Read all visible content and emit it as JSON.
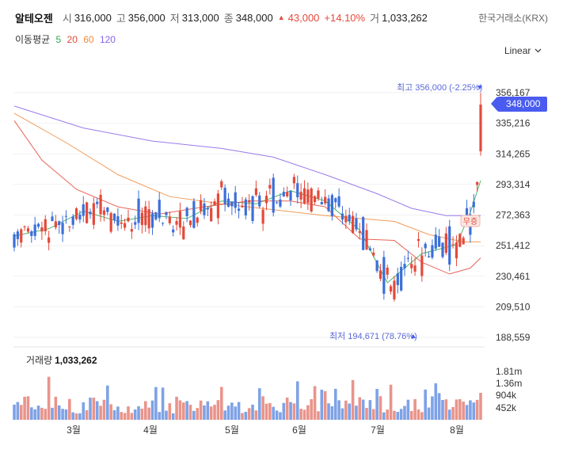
{
  "header": {
    "name": "알테오젠",
    "open_label": "시",
    "open": "316,000",
    "high_label": "고",
    "high": "356,000",
    "low_label": "저",
    "low": "313,000",
    "close_label": "종",
    "close": "348,000",
    "change_arrow": "▲",
    "change": "43,000",
    "change_pct": "+14.10%",
    "volume_label": "거",
    "volume": "1,033,262",
    "exchange": "한국거래소(KRX)"
  },
  "moving_average": {
    "label": "이동평균",
    "periods": [
      {
        "value": "5",
        "color": "#2fa84f"
      },
      {
        "value": "20",
        "color": "#e5493a"
      },
      {
        "value": "60",
        "color": "#f08a3c"
      },
      {
        "value": "120",
        "color": "#8a63e8"
      }
    ]
  },
  "scale_selector": {
    "value": "Linear",
    "icon": "chevron-down-icon"
  },
  "price_tag": "348,000",
  "annotations": {
    "high": "최고  356,000 (-2.25%)",
    "low": "최저  194,671 (78.76%)",
    "free_issue_badge": "무증"
  },
  "volume_panel": {
    "label": "거래량",
    "value": "1,033,262"
  },
  "colors": {
    "up": "#e5493a",
    "down": "#3b6fd9",
    "accent": "#4a5cf0"
  },
  "chart_data": [
    {
      "type": "candlestick",
      "title": "알테오젠",
      "ylim": [
        188559,
        356167
      ],
      "y_ticks": [
        "356,167",
        "335,216",
        "314,265",
        "293,314",
        "272,363",
        "251,412",
        "230,461",
        "209,510",
        "188,559"
      ],
      "x_ticks": [
        "3월",
        "4월",
        "5월",
        "6월",
        "7월",
        "8월"
      ],
      "last": {
        "open": 316000,
        "high": 356000,
        "low": 313000,
        "close": 348000
      },
      "series_ma": [
        {
          "name": "5",
          "points": [
            [
              0,
              258000
            ],
            [
              10,
              263000
            ],
            [
              20,
              275000
            ],
            [
              30,
              268000
            ],
            [
              40,
              272000
            ],
            [
              50,
              270000
            ],
            [
              60,
              282000
            ],
            [
              70,
              280000
            ],
            [
              80,
              289000
            ],
            [
              90,
              282000
            ],
            [
              100,
              262000
            ],
            [
              108,
              226000
            ],
            [
              112,
              234000
            ],
            [
              118,
              246000
            ],
            [
              128,
              252000
            ],
            [
              132,
              274000
            ],
            [
              135,
              296000
            ]
          ]
        },
        {
          "name": "20",
          "points": [
            [
              0,
              337000
            ],
            [
              8,
              310000
            ],
            [
              18,
              290000
            ],
            [
              30,
              278000
            ],
            [
              42,
              273000
            ],
            [
              55,
              278000
            ],
            [
              68,
              282000
            ],
            [
              80,
              282000
            ],
            [
              90,
              278000
            ],
            [
              100,
              256000
            ],
            [
              110,
              255000
            ],
            [
              118,
              240000
            ],
            [
              126,
              232000
            ],
            [
              132,
              236000
            ],
            [
              135,
              243000
            ]
          ]
        },
        {
          "name": "60",
          "points": [
            [
              0,
              342000
            ],
            [
              15,
              322000
            ],
            [
              30,
              300000
            ],
            [
              45,
              285000
            ],
            [
              60,
              280000
            ],
            [
              75,
              276000
            ],
            [
              90,
              272000
            ],
            [
              100,
              270000
            ],
            [
              110,
              268000
            ],
            [
              120,
              259000
            ],
            [
              130,
              254000
            ],
            [
              135,
              254000
            ]
          ]
        },
        {
          "name": "120",
          "points": [
            [
              0,
              347000
            ],
            [
              20,
              332000
            ],
            [
              40,
              323000
            ],
            [
              60,
              318000
            ],
            [
              75,
              312000
            ],
            [
              90,
              300000
            ],
            [
              105,
              287000
            ],
            [
              115,
              277000
            ],
            [
              125,
              272000
            ],
            [
              135,
              272000
            ]
          ]
        }
      ]
    },
    {
      "type": "bar",
      "title": "거래량",
      "y_ticks": [
        "1.81m",
        "1.36m",
        "904k",
        "452k"
      ],
      "last_value": 1033262
    }
  ]
}
